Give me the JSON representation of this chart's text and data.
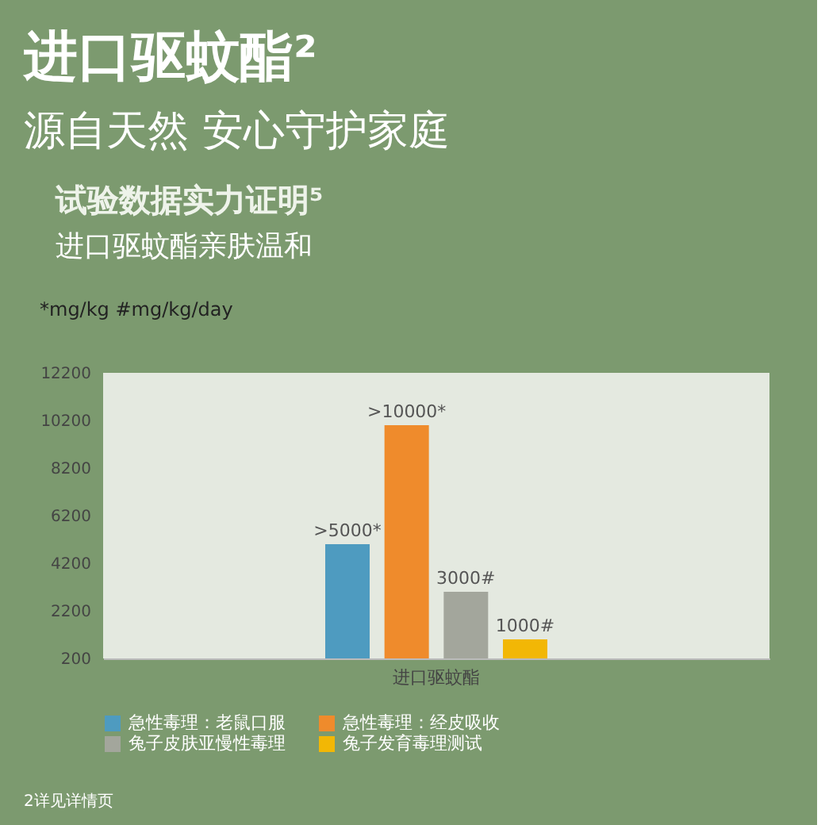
{
  "chart_data": {
    "type": "bar",
    "title": "试验数据实力证明⁵",
    "subtitle": "进口驱蚊酯亲肤温和",
    "ylabel": "*mg/kg  #mg/kg/day",
    "annotations": [
      "进口驱蚊酯²",
      "源自天然 安心守护家庭",
      "2详见详情页"
    ],
    "categories": [
      "进口驱蚊酯"
    ],
    "series": [
      {
        "name": "急性毒理：老鼠口服",
        "color": "#4e9bc0",
        "values": [
          5000
        ],
        "value_labels": [
          ">5000*"
        ]
      },
      {
        "name": "急性毒理：经皮吸收",
        "color": "#ef8b2c",
        "values": [
          10000
        ],
        "value_labels": [
          ">10000*"
        ]
      },
      {
        "name": "兔子皮肤亚慢性毒理",
        "color": "#a3a69c",
        "values": [
          3000
        ],
        "value_labels": [
          "3000#"
        ]
      },
      {
        "name": "兔子发育毒理测试",
        "color": "#f2b705",
        "values": [
          1000
        ],
        "value_labels": [
          "1000#"
        ]
      }
    ],
    "ylim": [
      200,
      12200
    ],
    "yticks": [
      200,
      2200,
      4200,
      6200,
      8200,
      10200,
      12200
    ],
    "legend": "bottom"
  }
}
